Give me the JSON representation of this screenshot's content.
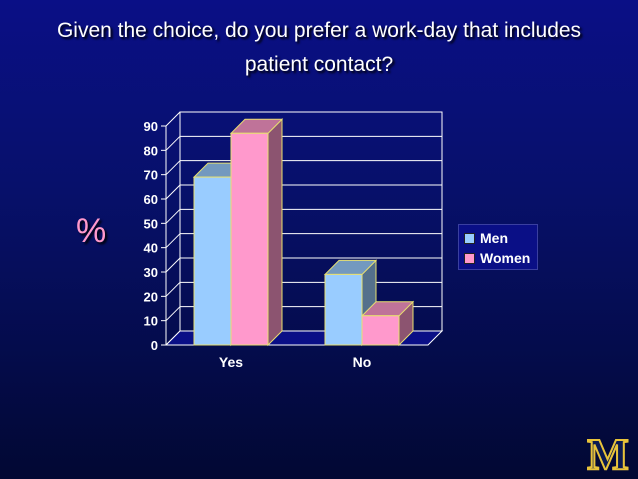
{
  "slide": {
    "title_line1": "Given the choice, do you prefer a work-day that includes",
    "title_line2": "patient contact?",
    "axis_symbol": "%"
  },
  "colors": {
    "men": "#99ccff",
    "women": "#ff99cc",
    "axis_text": "#ffffff",
    "pct_symbol": "#ff99cc"
  },
  "chart_data": {
    "type": "bar",
    "title": "Given the choice, do you prefer a work-day that includes patient contact?",
    "categories": [
      "Yes",
      "No"
    ],
    "series": [
      {
        "name": "Men",
        "values": [
          69,
          29
        ]
      },
      {
        "name": "Women",
        "values": [
          87,
          12
        ]
      }
    ],
    "ylabel": "%",
    "ylim": [
      0,
      90
    ],
    "yticks": [
      0,
      10,
      20,
      30,
      40,
      50,
      60,
      70,
      80,
      90
    ],
    "grid": true,
    "legend_position": "right"
  },
  "logo": {
    "text": "M"
  }
}
